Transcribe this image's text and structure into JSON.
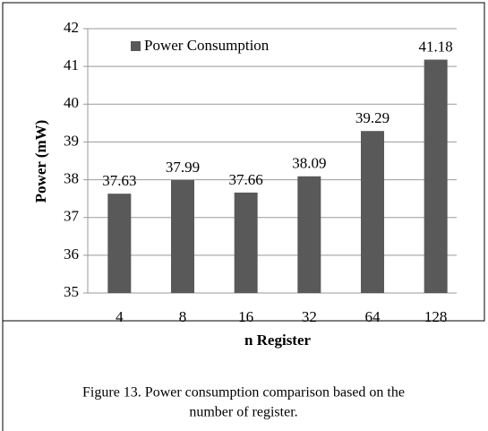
{
  "chart_data": {
    "type": "bar",
    "caption": [
      "Figure 13.  Power consumption comparison based on the",
      "number of register."
    ],
    "xlabel": "n Register",
    "ylabel": "Power (mW)",
    "categories": [
      "4",
      "8",
      "16",
      "32",
      "64",
      "128"
    ],
    "series": [
      {
        "name": "Power Consumption",
        "color": "#595959",
        "values": [
          37.63,
          37.99,
          37.66,
          38.09,
          39.29,
          41.18
        ]
      }
    ],
    "ylim": [
      35,
      42
    ],
    "yticks": [
      35,
      36,
      37,
      38,
      39,
      40,
      41,
      42
    ],
    "grid": true,
    "legend": "top-left"
  }
}
